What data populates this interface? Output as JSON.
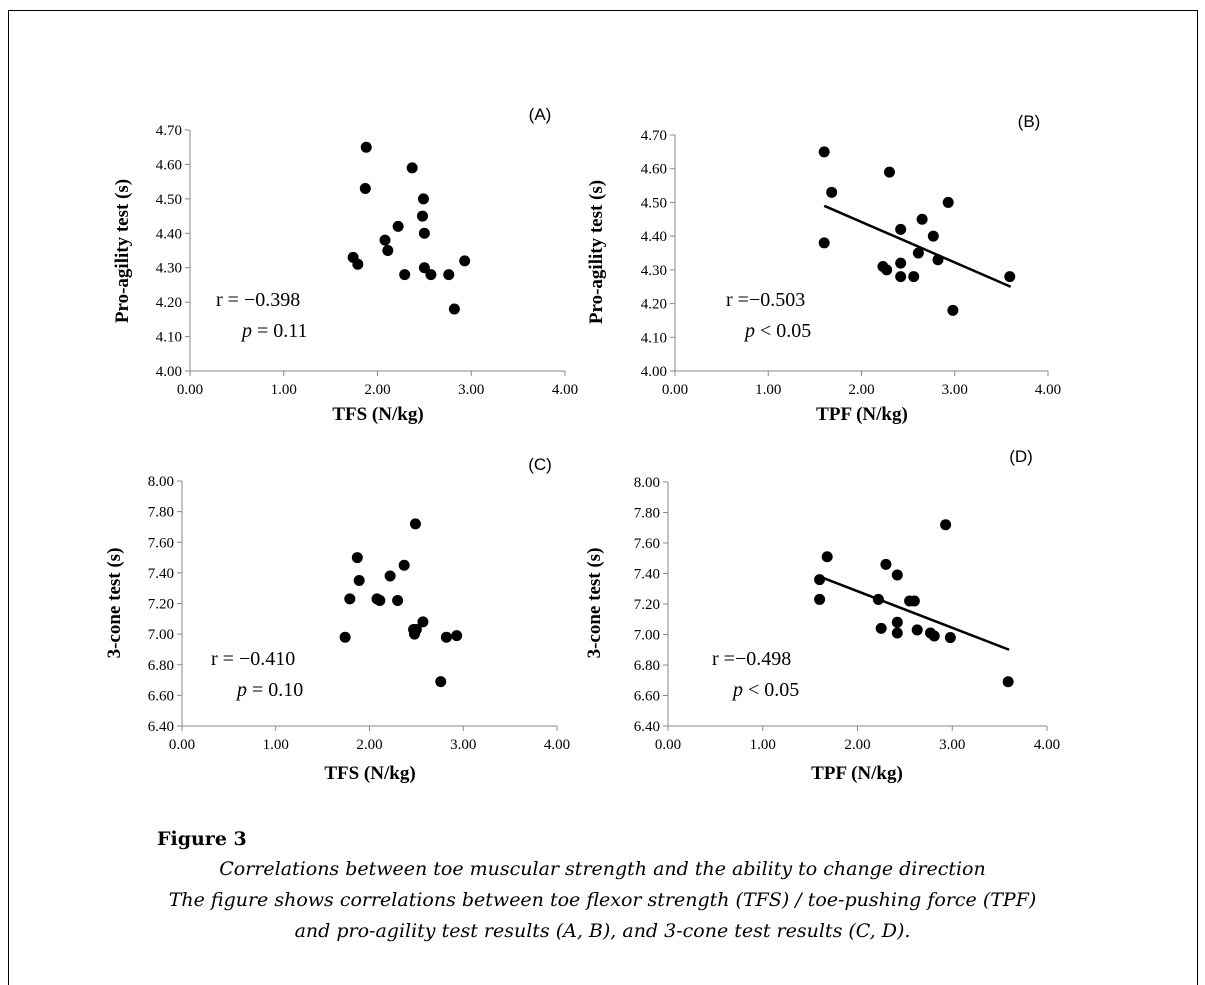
{
  "figure": {
    "label": "Figure 3",
    "caption_lines": [
      "Correlations between toe muscular strength and the ability to change direction",
      "The figure shows correlations between toe flexor strength (TFS) / toe-pushing force (TPF)",
      "and pro-agility test results (A, B), and 3-cone test results (C, D)."
    ]
  },
  "chart_data": [
    {
      "type": "scatter",
      "panel": "(A)",
      "xlabel": "TFS (N/kg)",
      "ylabel": "Pro-agility test (s)",
      "xlim": [
        0,
        4
      ],
      "ylim": [
        4.0,
        4.7
      ],
      "xticks": [
        "0.00",
        "1.00",
        "2.00",
        "3.00",
        "4.00"
      ],
      "yticks": [
        "4.00",
        "4.10",
        "4.20",
        "4.30",
        "4.40",
        "4.50",
        "4.60",
        "4.70"
      ],
      "r_text": "r = −0.398",
      "p_label": "p",
      "p_text": " = 0.11",
      "trendline": null,
      "points": [
        [
          1.88,
          4.65
        ],
        [
          1.87,
          4.53
        ],
        [
          1.74,
          4.33
        ],
        [
          1.79,
          4.31
        ],
        [
          2.08,
          4.38
        ],
        [
          2.11,
          4.35
        ],
        [
          2.22,
          4.42
        ],
        [
          2.29,
          4.28
        ],
        [
          2.37,
          4.59
        ],
        [
          2.48,
          4.45
        ],
        [
          2.49,
          4.5
        ],
        [
          2.5,
          4.4
        ],
        [
          2.5,
          4.3
        ],
        [
          2.57,
          4.28
        ],
        [
          2.76,
          4.28
        ],
        [
          2.82,
          4.18
        ],
        [
          2.93,
          4.32
        ]
      ]
    },
    {
      "type": "scatter",
      "panel": "(B)",
      "xlabel": "TPF (N/kg)",
      "ylabel": "Pro-agility test (s)",
      "xlim": [
        0,
        4
      ],
      "ylim": [
        4.0,
        4.7
      ],
      "xticks": [
        "0.00",
        "1.00",
        "2.00",
        "3.00",
        "4.00"
      ],
      "yticks": [
        "4.00",
        "4.10",
        "4.20",
        "4.30",
        "4.40",
        "4.50",
        "4.60",
        "4.70"
      ],
      "r_text": "r =−0.503",
      "p_label": "p",
      "p_text": " < 0.05",
      "trendline": [
        [
          1.6,
          4.49
        ],
        [
          3.6,
          4.25
        ]
      ],
      "points": [
        [
          1.6,
          4.65
        ],
        [
          1.6,
          4.38
        ],
        [
          1.68,
          4.53
        ],
        [
          2.23,
          4.31
        ],
        [
          2.27,
          4.3
        ],
        [
          2.3,
          4.59
        ],
        [
          2.42,
          4.42
        ],
        [
          2.42,
          4.32
        ],
        [
          2.42,
          4.28
        ],
        [
          2.56,
          4.28
        ],
        [
          2.61,
          4.35
        ],
        [
          2.65,
          4.45
        ],
        [
          2.77,
          4.4
        ],
        [
          2.82,
          4.33
        ],
        [
          2.93,
          4.5
        ],
        [
          2.98,
          4.18
        ],
        [
          3.59,
          4.28
        ]
      ]
    },
    {
      "type": "scatter",
      "panel": "(C)",
      "xlabel": "TFS (N/kg)",
      "ylabel": "3-cone test (s)",
      "xlim": [
        0,
        4
      ],
      "ylim": [
        6.4,
        8.0
      ],
      "xticks": [
        "0.00",
        "1.00",
        "2.00",
        "3.00",
        "4.00"
      ],
      "yticks": [
        "6.40",
        "6.60",
        "6.80",
        "7.00",
        "7.20",
        "7.40",
        "7.60",
        "7.80",
        "8.00"
      ],
      "r_text": "r = −0.410",
      "p_label": "p",
      "p_text": " = 0.10",
      "trendline": null,
      "points": [
        [
          1.74,
          6.98
        ],
        [
          1.79,
          7.23
        ],
        [
          1.87,
          7.5
        ],
        [
          1.89,
          7.35
        ],
        [
          2.08,
          7.23
        ],
        [
          2.11,
          7.22
        ],
        [
          2.22,
          7.38
        ],
        [
          2.3,
          7.22
        ],
        [
          2.37,
          7.45
        ],
        [
          2.47,
          7.03
        ],
        [
          2.48,
          7.0
        ],
        [
          2.49,
          7.72
        ],
        [
          2.5,
          7.03
        ],
        [
          2.57,
          7.08
        ],
        [
          2.76,
          6.69
        ],
        [
          2.82,
          6.98
        ],
        [
          2.93,
          6.99
        ]
      ]
    },
    {
      "type": "scatter",
      "panel": "(D)",
      "xlabel": "TPF (N/kg)",
      "ylabel": "3-cone test (s)",
      "xlim": [
        0,
        4
      ],
      "ylim": [
        6.4,
        8.0
      ],
      "xticks": [
        "0.00",
        "1.00",
        "2.00",
        "3.00",
        "4.00"
      ],
      "yticks": [
        "6.40",
        "6.60",
        "6.80",
        "7.00",
        "7.20",
        "7.40",
        "7.60",
        "7.80",
        "8.00"
      ],
      "r_text": "r =−0.498",
      "p_label": "p",
      "p_text": " < 0.05",
      "trendline": [
        [
          1.6,
          7.38
        ],
        [
          3.6,
          6.9
        ]
      ],
      "points": [
        [
          1.6,
          7.23
        ],
        [
          1.6,
          7.36
        ],
        [
          1.68,
          7.51
        ],
        [
          2.22,
          7.23
        ],
        [
          2.25,
          7.04
        ],
        [
          2.3,
          7.46
        ],
        [
          2.42,
          7.08
        ],
        [
          2.42,
          7.01
        ],
        [
          2.42,
          7.39
        ],
        [
          2.55,
          7.22
        ],
        [
          2.6,
          7.22
        ],
        [
          2.63,
          7.03
        ],
        [
          2.77,
          7.01
        ],
        [
          2.81,
          6.99
        ],
        [
          2.93,
          7.72
        ],
        [
          2.98,
          6.98
        ],
        [
          3.59,
          6.69
        ]
      ]
    }
  ]
}
